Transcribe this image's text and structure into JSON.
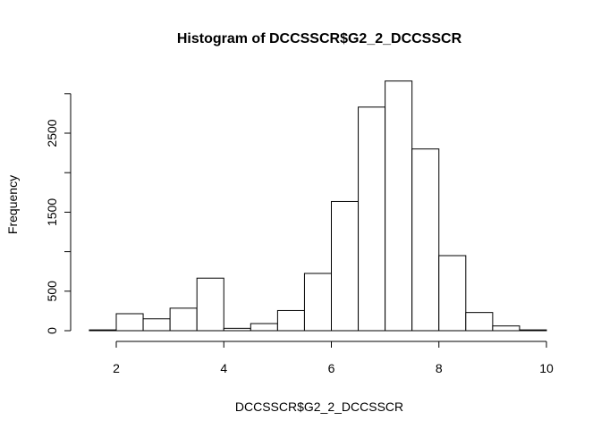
{
  "chart_data": {
    "type": "bar",
    "title": "Histogram of DCCSSCR$G2_2_DCCSSCR",
    "xlabel": "DCCSSCR$G2_2_DCCSSCR",
    "ylabel": "Frequency",
    "bin_width": 0.5,
    "bin_edges": [
      1.5,
      2.0,
      2.5,
      3.0,
      3.5,
      4.0,
      4.5,
      5.0,
      5.5,
      6.0,
      6.5,
      7.0,
      7.5,
      8.0,
      8.5,
      9.0,
      9.5,
      10.0
    ],
    "values": [
      10,
      215,
      150,
      285,
      665,
      30,
      90,
      255,
      725,
      1635,
      2830,
      3160,
      2300,
      950,
      230,
      60,
      10
    ],
    "xlim": [
      1.5,
      10
    ],
    "ylim": [
      0,
      3160
    ],
    "x_ticks": [
      2,
      4,
      6,
      8,
      10
    ],
    "y_ticks": [
      0,
      500,
      1500,
      2500
    ],
    "x_tick_labels": [
      "2",
      "4",
      "6",
      "8",
      "10"
    ],
    "y_tick_labels": [
      "0",
      "500",
      "1500",
      "2500"
    ],
    "grid": false,
    "colors": {
      "bar_fill": "#ffffff",
      "bar_stroke": "#000000"
    }
  }
}
